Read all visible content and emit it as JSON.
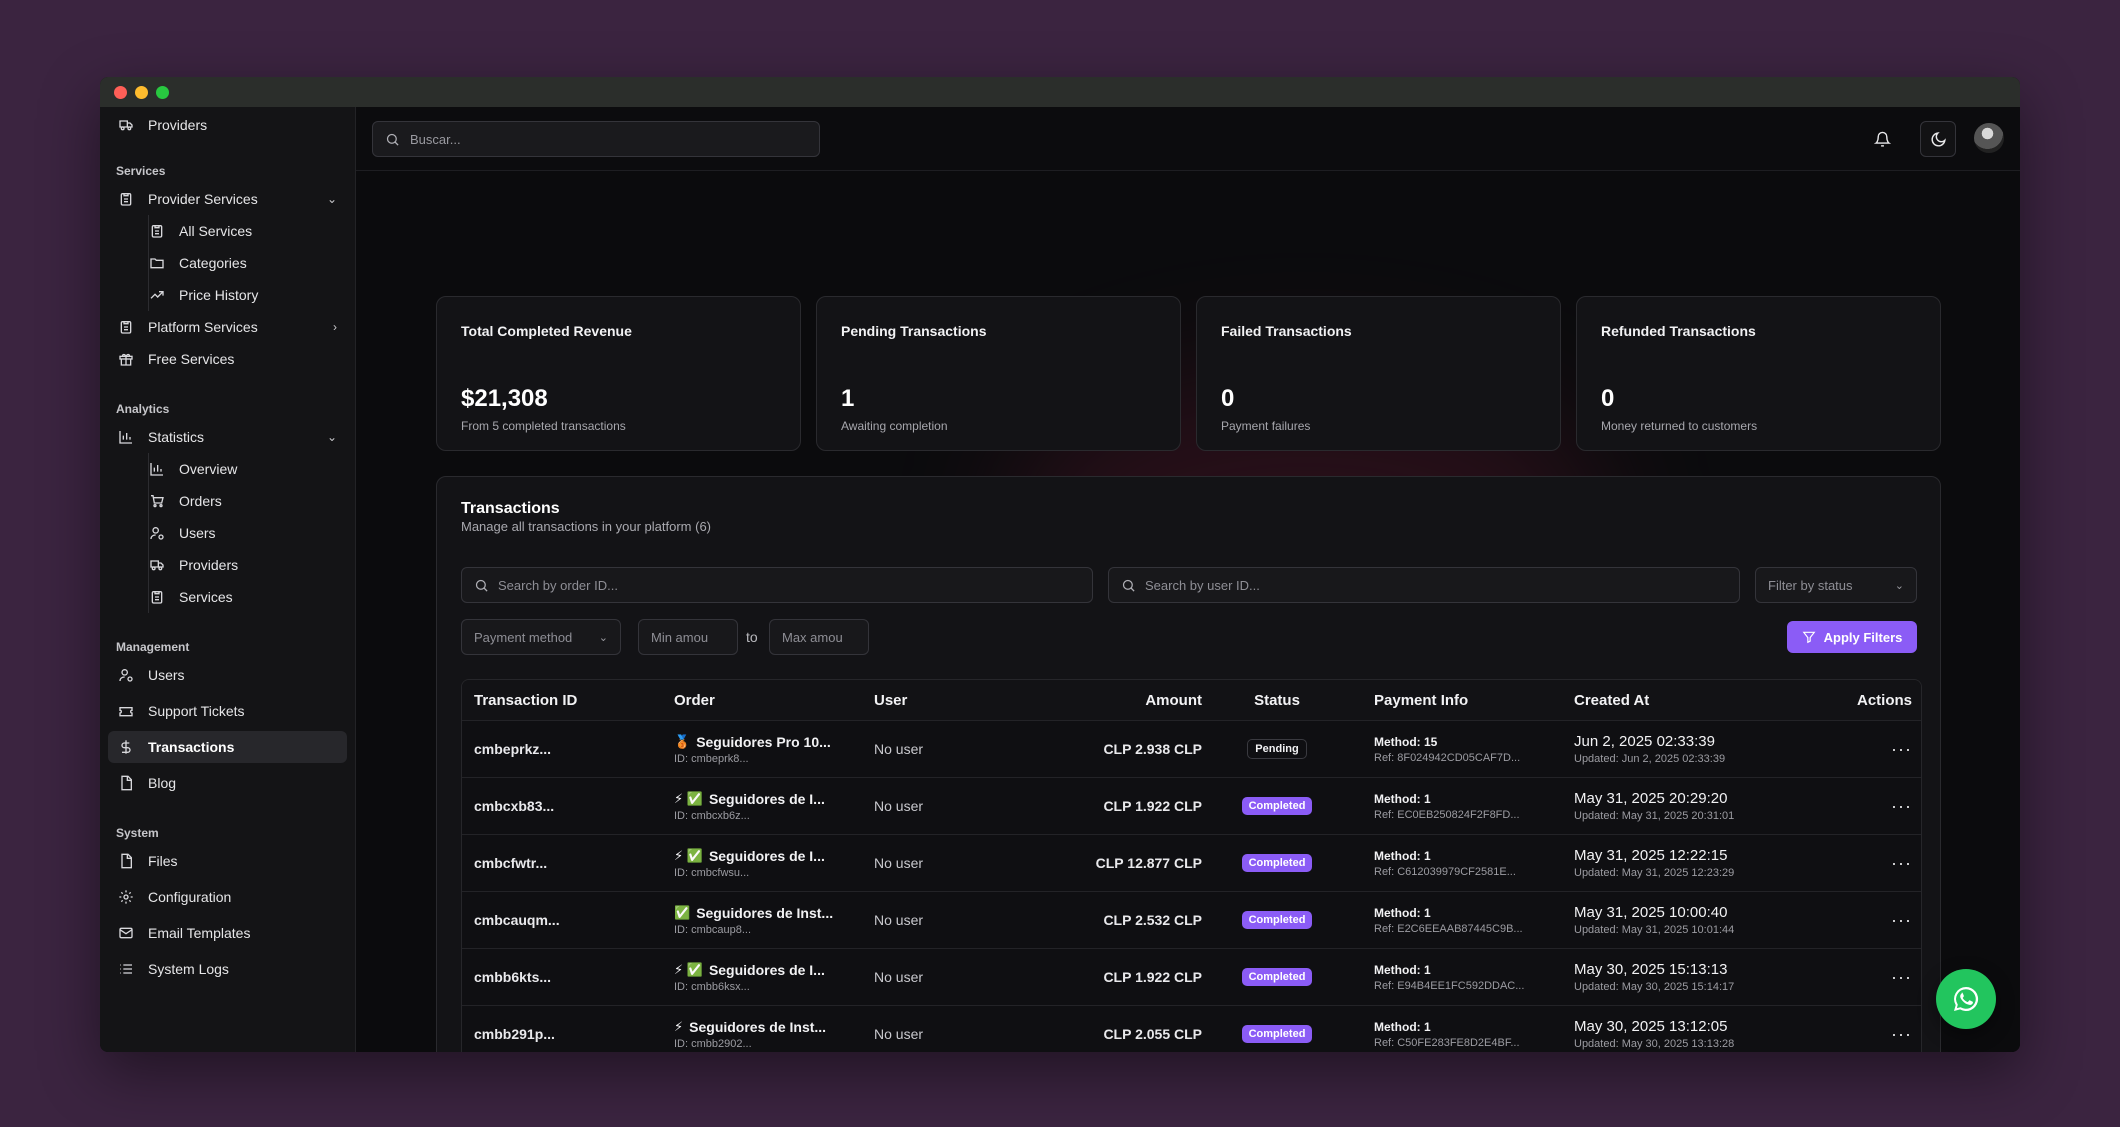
{
  "topbar": {
    "search_placeholder": "Buscar..."
  },
  "sidebar": {
    "top_item": "Providers",
    "services_label": "Services",
    "provider_services": "Provider Services",
    "provider_sub": [
      "All Services",
      "Categories",
      "Price History"
    ],
    "platform_services": "Platform Services",
    "free_services": "Free Services",
    "analytics_label": "Analytics",
    "statistics": "Statistics",
    "statistics_sub": [
      "Overview",
      "Orders",
      "Users",
      "Providers",
      "Services"
    ],
    "management_label": "Management",
    "management_items": [
      "Users",
      "Support Tickets",
      "Transactions",
      "Blog"
    ],
    "system_label": "System",
    "system_items": [
      "Files",
      "Configuration",
      "Email Templates",
      "System Logs"
    ]
  },
  "stats": [
    {
      "title": "Total Completed Revenue",
      "value": "$21,308",
      "sub": "From 5 completed transactions"
    },
    {
      "title": "Pending Transactions",
      "value": "1",
      "sub": "Awaiting completion"
    },
    {
      "title": "Failed Transactions",
      "value": "0",
      "sub": "Payment failures"
    },
    {
      "title": "Refunded Transactions",
      "value": "0",
      "sub": "Money returned to customers"
    }
  ],
  "transactions": {
    "title": "Transactions",
    "subtitle": "Manage all transactions in your platform (6)",
    "search_order_placeholder": "Search by order ID...",
    "search_user_placeholder": "Search by user ID...",
    "filter_status": "Filter by status",
    "payment_method": "Payment method",
    "min_amount": "Min amou",
    "to_label": "to",
    "max_amount": "Max amou",
    "apply_filters": "Apply Filters",
    "columns": [
      "Transaction ID",
      "Order",
      "User",
      "Amount",
      "Status",
      "Payment Info",
      "Created At",
      "Actions"
    ],
    "rows": [
      {
        "id": "cmbeprkz...",
        "order_icons": "🥉",
        "order": "Seguidores Pro 10...",
        "order_id": "ID: cmbeprk8...",
        "user": "No user",
        "amount": "CLP 2.938 CLP",
        "status": "Pending",
        "method": "Method: 15",
        "ref": "Ref: 8F024942CD05CAF7D...",
        "created": "Jun 2, 2025 02:33:39",
        "updated": "Updated: Jun 2, 2025 02:33:39",
        "actions": "···"
      },
      {
        "id": "cmbcxb83...",
        "order_icons": "⚡ ✅",
        "order": "Seguidores de I...",
        "order_id": "ID: cmbcxb6z...",
        "user": "No user",
        "amount": "CLP 1.922 CLP",
        "status": "Completed",
        "method": "Method: 1",
        "ref": "Ref: EC0EB250824F2F8FD...",
        "created": "May 31, 2025 20:29:20",
        "updated": "Updated: May 31, 2025 20:31:01",
        "actions": "···"
      },
      {
        "id": "cmbcfwtr...",
        "order_icons": "⚡ ✅",
        "order": "Seguidores de I...",
        "order_id": "ID: cmbcfwsu...",
        "user": "No user",
        "amount": "CLP 12.877 CLP",
        "status": "Completed",
        "method": "Method: 1",
        "ref": "Ref: C612039979CF2581E...",
        "created": "May 31, 2025 12:22:15",
        "updated": "Updated: May 31, 2025 12:23:29",
        "actions": "···"
      },
      {
        "id": "cmbcauqm...",
        "order_icons": "✅",
        "order": "Seguidores de Inst...",
        "order_id": "ID: cmbcaup8...",
        "user": "No user",
        "amount": "CLP 2.532 CLP",
        "status": "Completed",
        "method": "Method: 1",
        "ref": "Ref: E2C6EEAAB87445C9B...",
        "created": "May 31, 2025 10:00:40",
        "updated": "Updated: May 31, 2025 10:01:44",
        "actions": "···"
      },
      {
        "id": "cmbb6kts...",
        "order_icons": "⚡ ✅",
        "order": "Seguidores de I...",
        "order_id": "ID: cmbb6ksx...",
        "user": "No user",
        "amount": "CLP 1.922 CLP",
        "status": "Completed",
        "method": "Method: 1",
        "ref": "Ref: E94B4EE1FC592DDAC...",
        "created": "May 30, 2025 15:13:13",
        "updated": "Updated: May 30, 2025 15:14:17",
        "actions": "···"
      },
      {
        "id": "cmbb291p...",
        "order_icons": "⚡",
        "order": "Seguidores de Inst...",
        "order_id": "ID: cmbb2902...",
        "user": "No user",
        "amount": "CLP 2.055 CLP",
        "status": "Completed",
        "method": "Method: 1",
        "ref": "Ref: C50FE283FE8D2E4BF...",
        "created": "May 30, 2025 13:12:05",
        "updated": "Updated: May 30, 2025 13:13:28",
        "actions": "···"
      }
    ]
  },
  "colors": {
    "accent": "#8b5cf6",
    "whatsapp": "#22c55e",
    "backdrop": "#3b2440"
  }
}
